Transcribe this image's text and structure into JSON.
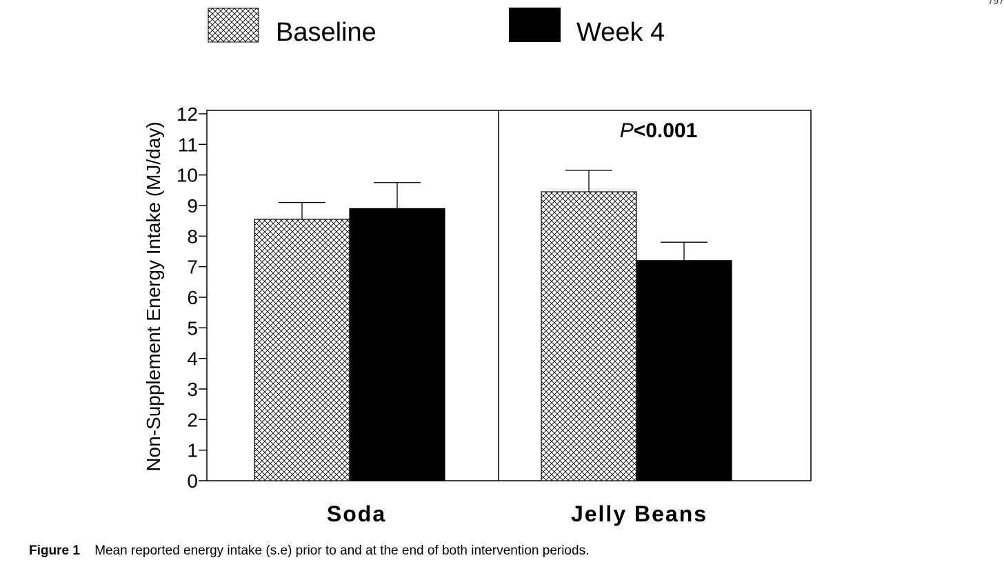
{
  "page_number": "797",
  "caption": {
    "label": "Figure 1",
    "text": "Mean reported energy intake (s.e) prior to and at the end of both intervention periods."
  },
  "chart_data": {
    "type": "bar",
    "categories": [
      "Soda",
      "Jelly Beans"
    ],
    "series": [
      {
        "name": "Baseline",
        "pattern": "crosshatch",
        "color": "#000000",
        "values": [
          8.55,
          9.45
        ],
        "errors": [
          0.55,
          0.7
        ]
      },
      {
        "name": "Week 4",
        "pattern": "solid",
        "color": "#000000",
        "values": [
          8.9,
          7.2
        ],
        "errors": [
          0.85,
          0.6
        ]
      }
    ],
    "title": "",
    "xlabel": "",
    "ylabel": "Non-Supplement Energy Intake (MJ/day)",
    "ylim": [
      0,
      12
    ],
    "yticks": [
      "0",
      "1",
      "2",
      "3",
      "4",
      "5",
      "6",
      "7",
      "8",
      "9",
      "10",
      "11",
      "12"
    ],
    "annotation": {
      "category": "Jelly Beans",
      "p_symbol": "P",
      "text": "<0.001"
    },
    "legend": {
      "placement": "top"
    },
    "grid": false
  }
}
